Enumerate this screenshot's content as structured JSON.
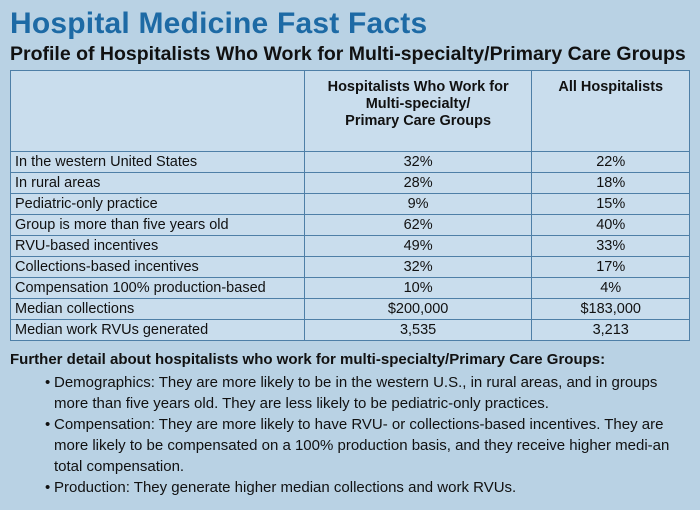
{
  "header": {
    "title": "Hospital Medicine Fast Facts",
    "subtitle": "Profile of Hospitalists Who Work for Multi-specialty/Primary Care Groups"
  },
  "table": {
    "columns": [
      "",
      "Hospitalists Who Work for Multi-specialty/ Primary Care Groups",
      "All Hospitalists"
    ],
    "rows": [
      {
        "label": "In the western United States",
        "group": "32%",
        "all": "22%"
      },
      {
        "label": "In rural areas",
        "group": "28%",
        "all": "18%"
      },
      {
        "label": "Pediatric-only practice",
        "group": "9%",
        "all": "15%"
      },
      {
        "label": "Group is more than five years old",
        "group": "62%",
        "all": "40%"
      },
      {
        "label": "RVU-based incentives",
        "group": "49%",
        "all": "33%"
      },
      {
        "label": "Collections-based incentives",
        "group": "32%",
        "all": "17%"
      },
      {
        "label": "Compensation 100% production-based",
        "group": "10%",
        "all": "4%"
      },
      {
        "label": "Median collections",
        "group": "$200,000",
        "all": "$183,000"
      },
      {
        "label": "Median work RVUs generated",
        "group": "3,535",
        "all": "3,213"
      }
    ]
  },
  "details": {
    "title": "Further detail about hospitalists who work for multi-specialty/Primary Care Groups:",
    "bullets": [
      "Demographics: They are more likely to be in the western U.S., in rural areas, and in groups more than five years old. They are less likely to be pediatric-only practices.",
      "Compensation: They are more likely to have RVU- or collections-based incentives. They are more likely to be compensated on a 100% production basis, and they receive higher medi-an total compensation.",
      "Production: They generate higher median collections and work RVUs."
    ]
  },
  "colors": {
    "background": "#b9d2e4",
    "title": "#1d6aa5",
    "table_fill": "#c9dded",
    "table_border": "#4e7fa7"
  }
}
